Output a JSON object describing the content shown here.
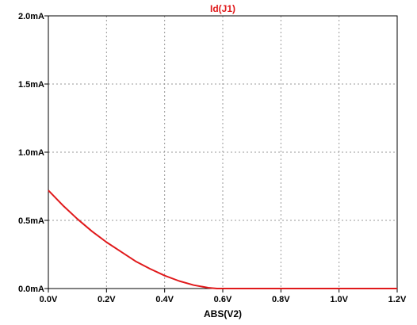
{
  "chart_data": {
    "type": "line",
    "title": "",
    "xlabel": "ABS(V2)",
    "ylabel": "",
    "xlim": [
      0.0,
      1.2
    ],
    "ylim": [
      0.0,
      2.0
    ],
    "grid": true,
    "x_ticks": [
      {
        "value": 0.0,
        "label": "0.0V"
      },
      {
        "value": 0.2,
        "label": "0.2V"
      },
      {
        "value": 0.4,
        "label": "0.4V"
      },
      {
        "value": 0.6,
        "label": "0.6V"
      },
      {
        "value": 0.8,
        "label": "0.8V"
      },
      {
        "value": 1.0,
        "label": "1.0V"
      },
      {
        "value": 1.2,
        "label": "1.2V"
      }
    ],
    "y_ticks": [
      {
        "value": 0.0,
        "label": "0.0mA"
      },
      {
        "value": 0.5,
        "label": "0.5mA"
      },
      {
        "value": 1.0,
        "label": "1.0mA"
      },
      {
        "value": 1.5,
        "label": "1.5mA"
      },
      {
        "value": 2.0,
        "label": "2.0mA"
      }
    ],
    "series": [
      {
        "name": "Id(J1)",
        "color": "#e0191b",
        "x": [
          0.0,
          0.05,
          0.1,
          0.15,
          0.2,
          0.25,
          0.3,
          0.35,
          0.4,
          0.45,
          0.5,
          0.55,
          0.58,
          0.6,
          0.7,
          0.8,
          0.9,
          1.0,
          1.1,
          1.2
        ],
        "y": [
          0.72,
          0.61,
          0.51,
          0.42,
          0.34,
          0.27,
          0.2,
          0.145,
          0.095,
          0.055,
          0.025,
          0.006,
          0.0,
          0.0,
          0.0,
          0.0,
          0.0,
          0.0,
          0.0,
          0.0
        ]
      }
    ]
  }
}
